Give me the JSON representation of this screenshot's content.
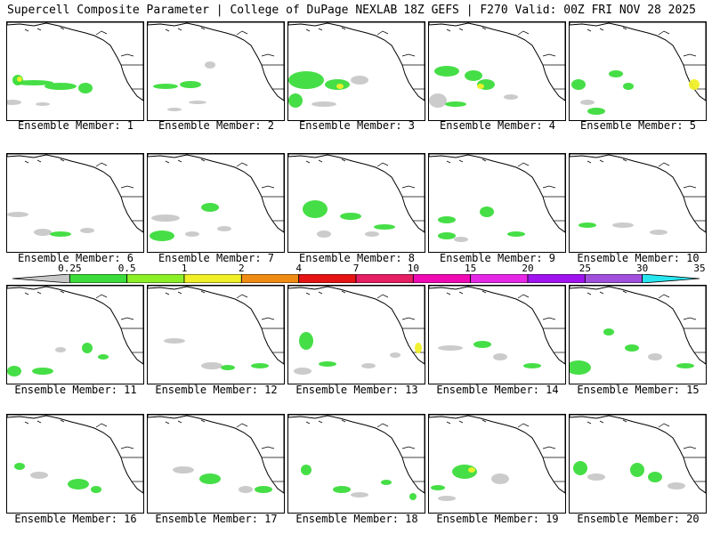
{
  "header": {
    "title_left": "Supercell Composite Parameter | College of DuPage NEXLAB",
    "title_right": "18Z GEFS | F270 Valid: 00Z FRI NOV 28 2025"
  },
  "members": [
    {
      "label": "Ensemble Member: 1"
    },
    {
      "label": "Ensemble Member: 2"
    },
    {
      "label": "Ensemble Member: 3"
    },
    {
      "label": "Ensemble Member: 4"
    },
    {
      "label": "Ensemble Member: 5"
    },
    {
      "label": "Ensemble Member: 6"
    },
    {
      "label": "Ensemble Member: 7"
    },
    {
      "label": "Ensemble Member: 8"
    },
    {
      "label": "Ensemble Member: 9"
    },
    {
      "label": "Ensemble Member: 10"
    },
    {
      "label": "Ensemble Member: 11"
    },
    {
      "label": "Ensemble Member: 12"
    },
    {
      "label": "Ensemble Member: 13"
    },
    {
      "label": "Ensemble Member: 14"
    },
    {
      "label": "Ensemble Member: 15"
    },
    {
      "label": "Ensemble Member: 16"
    },
    {
      "label": "Ensemble Member: 17"
    },
    {
      "label": "Ensemble Member: 18"
    },
    {
      "label": "Ensemble Member: 19"
    },
    {
      "label": "Ensemble Member: 20"
    }
  ],
  "colorbar": {
    "labels": [
      "0.25",
      "0.5",
      "1",
      "2",
      "4",
      "7",
      "10",
      "15",
      "20",
      "25",
      "30",
      "35"
    ],
    "colors": [
      "#c8c8c8",
      "#3cdc3c",
      "#8cf028",
      "#f0f028",
      "#f08c14",
      "#e61414",
      "#e61e64",
      "#f00ab4",
      "#e628e6",
      "#a014f0",
      "#a050dc",
      "#28e6f0"
    ]
  }
}
